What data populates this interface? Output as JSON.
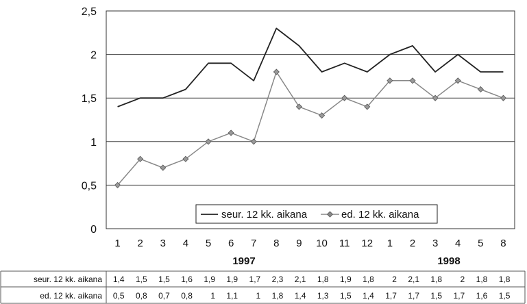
{
  "chart_data": {
    "type": "line",
    "categories": [
      "1",
      "2",
      "3",
      "4",
      "5",
      "6",
      "7",
      "8",
      "9",
      "10",
      "11",
      "12",
      "1",
      "2",
      "3",
      "4",
      "5",
      "8"
    ],
    "year_labels": [
      "1997",
      "1998"
    ],
    "ylim": [
      0,
      2.5
    ],
    "yticks": [
      "0",
      "0,5",
      "1",
      "1,5",
      "2",
      "2,5"
    ],
    "grid": true,
    "legend_position": "bottom-right inside plot",
    "series": [
      {
        "name": "seur. 12 kk. aikana",
        "values": [
          1.4,
          1.5,
          1.5,
          1.6,
          1.9,
          1.9,
          1.7,
          2.3,
          2.1,
          1.8,
          1.9,
          1.8,
          2.0,
          2.1,
          1.8,
          2.0,
          1.8,
          1.8
        ],
        "table_values": [
          "1,4",
          "1,5",
          "1,5",
          "1,6",
          "1,9",
          "1,9",
          "1,7",
          "2,3",
          "2,1",
          "1,8",
          "1,9",
          "1,8",
          "2",
          "2,1",
          "1,8",
          "2",
          "1,8",
          "1,8"
        ],
        "color": "#222222",
        "marker": "none"
      },
      {
        "name": "ed. 12 kk. aikana",
        "values": [
          0.5,
          0.8,
          0.7,
          0.8,
          1.0,
          1.1,
          1.0,
          1.8,
          1.4,
          1.3,
          1.5,
          1.4,
          1.7,
          1.7,
          1.5,
          1.7,
          1.6,
          1.5
        ],
        "table_values": [
          "0,5",
          "0,8",
          "0,7",
          "0,8",
          "1",
          "1,1",
          "1",
          "1,8",
          "1,4",
          "1,3",
          "1,5",
          "1,4",
          "1,7",
          "1,7",
          "1,5",
          "1,7",
          "1,6",
          "1,5"
        ],
        "color": "#888888",
        "marker": "diamond"
      }
    ]
  }
}
